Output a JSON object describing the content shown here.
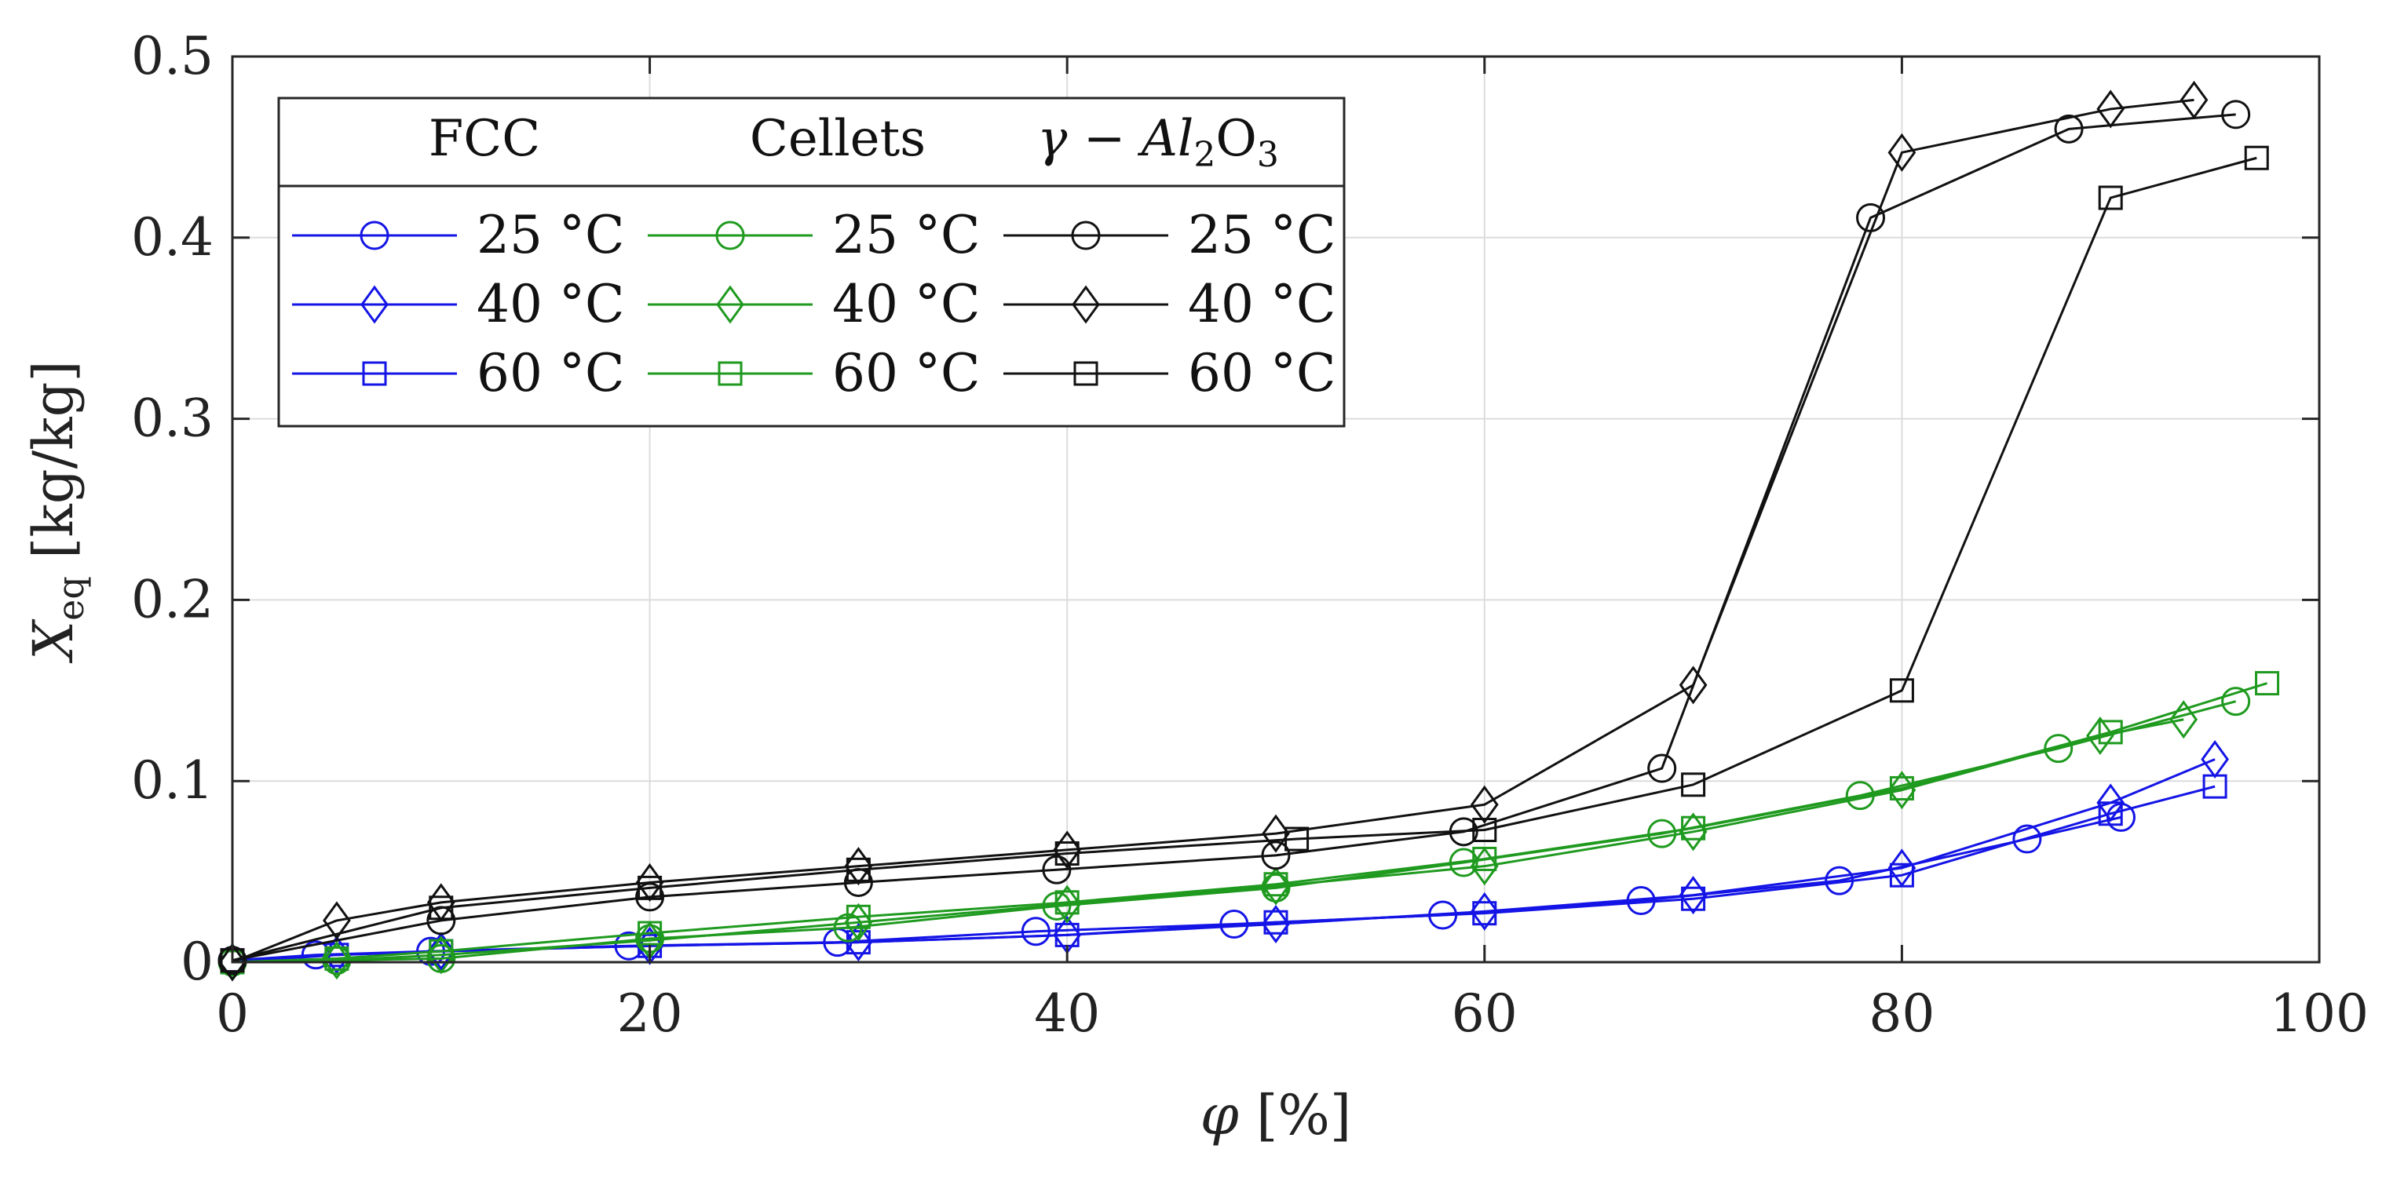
{
  "chart_data": {
    "type": "line",
    "title": "",
    "xlabel": "φ [%]",
    "ylabel": "X_eq [kg/kg]",
    "ylabel_main": "X",
    "ylabel_sub": "eq",
    "ylabel_unit": " [kg/kg]",
    "xlabel_symbol": "φ",
    "xlabel_unit": " [%]",
    "xlim": [
      0,
      100
    ],
    "ylim": [
      0,
      0.5
    ],
    "xticks": [
      0,
      20,
      40,
      60,
      80,
      100
    ],
    "xtick_labels": [
      "0",
      "20",
      "40",
      "60",
      "80",
      "100"
    ],
    "yticks": [
      0,
      0.1,
      0.2,
      0.3,
      0.4,
      0.5
    ],
    "ytick_labels": [
      "0",
      "0.1",
      "0.2",
      "0.3",
      "0.4",
      "0.5"
    ],
    "grid": true,
    "legend": {
      "placement": "top-left",
      "columns": [
        "FCC",
        "Cellets",
        "γ − Al2O3"
      ],
      "column3_parts": {
        "gamma": "γ − Al",
        "sub1": "2",
        "mid": "O",
        "sub2": "3"
      },
      "rows": [
        "25 °C",
        "40 °C",
        "60 °C"
      ]
    },
    "colors": {
      "FCC": "#1414e6",
      "Cellets": "#1f9a1f",
      "Alumina": "#111111"
    },
    "series": [
      {
        "name": "FCC 25 °C",
        "material": "FCC",
        "marker": "circle",
        "color": "#1414e6",
        "x": [
          0,
          4,
          9.5,
          19,
          29,
          38.5,
          48,
          58,
          67.5,
          77,
          86,
          90.5
        ],
        "y": [
          0.001,
          0.004,
          0.006,
          0.009,
          0.011,
          0.017,
          0.021,
          0.026,
          0.034,
          0.045,
          0.068,
          0.08
        ]
      },
      {
        "name": "FCC 40 °C",
        "material": "FCC",
        "marker": "diamond",
        "color": "#1414e6",
        "x": [
          0,
          5,
          10,
          20,
          30,
          40,
          50,
          60,
          70,
          80,
          90,
          95
        ],
        "y": [
          0.0,
          0.004,
          0.006,
          0.009,
          0.011,
          0.015,
          0.021,
          0.028,
          0.037,
          0.052,
          0.088,
          0.112
        ]
      },
      {
        "name": "FCC 60 °C",
        "material": "FCC",
        "marker": "square",
        "color": "#1414e6",
        "x": [
          0,
          5,
          10,
          20,
          30,
          40,
          50,
          60,
          70,
          80,
          90,
          95
        ],
        "y": [
          0.001,
          0.004,
          0.006,
          0.009,
          0.011,
          0.015,
          0.022,
          0.027,
          0.035,
          0.048,
          0.082,
          0.097
        ]
      },
      {
        "name": "Cellets 25 °C",
        "material": "Cellets",
        "marker": "circle",
        "color": "#1f9a1f",
        "x": [
          0,
          5,
          10,
          20,
          29.5,
          39.5,
          50,
          59,
          68.5,
          78,
          87.5,
          96
        ],
        "y": [
          0.0,
          0.001,
          0.002,
          0.013,
          0.019,
          0.031,
          0.041,
          0.055,
          0.071,
          0.092,
          0.118,
          0.144
        ]
      },
      {
        "name": "Cellets 40 °C",
        "material": "Cellets",
        "marker": "diamond",
        "color": "#1f9a1f",
        "x": [
          0,
          5,
          10,
          20,
          30,
          40,
          50,
          60,
          70,
          80,
          89.5,
          93.5
        ],
        "y": [
          0.0,
          0.001,
          0.004,
          0.012,
          0.022,
          0.032,
          0.042,
          0.053,
          0.072,
          0.095,
          0.125,
          0.134
        ]
      },
      {
        "name": "Cellets 60 °C",
        "material": "Cellets",
        "marker": "square",
        "color": "#1f9a1f",
        "x": [
          0,
          5,
          10,
          20,
          30,
          40,
          50,
          60,
          70,
          80,
          90,
          97.5
        ],
        "y": [
          0.0,
          0.002,
          0.006,
          0.016,
          0.025,
          0.033,
          0.043,
          0.057,
          0.074,
          0.096,
          0.127,
          0.154
        ]
      },
      {
        "name": "γ − Al2O3 25 °C",
        "material": "Alumina",
        "marker": "circle",
        "color": "#111111",
        "x": [
          0,
          10,
          20,
          30,
          39.5,
          50,
          59,
          68.5,
          78.5,
          88,
          96
        ],
        "y": [
          0.001,
          0.023,
          0.036,
          0.044,
          0.051,
          0.059,
          0.072,
          0.107,
          0.411,
          0.46,
          0.468
        ]
      },
      {
        "name": "γ − Al2O3 40 °C",
        "material": "Alumina",
        "marker": "diamond",
        "color": "#111111",
        "x": [
          0,
          5,
          10,
          20,
          30,
          40,
          50,
          60,
          70,
          80,
          90,
          94
        ],
        "y": [
          0.0,
          0.023,
          0.033,
          0.044,
          0.053,
          0.062,
          0.071,
          0.087,
          0.153,
          0.447,
          0.471,
          0.476
        ]
      },
      {
        "name": "γ − Al2O3 60 °C",
        "material": "Alumina",
        "marker": "square",
        "color": "#111111",
        "x": [
          0,
          10,
          20,
          30,
          40,
          51,
          60,
          70,
          80,
          90,
          97
        ],
        "y": [
          0.001,
          0.03,
          0.041,
          0.051,
          0.06,
          0.068,
          0.073,
          0.098,
          0.15,
          0.422,
          0.444
        ]
      }
    ]
  }
}
